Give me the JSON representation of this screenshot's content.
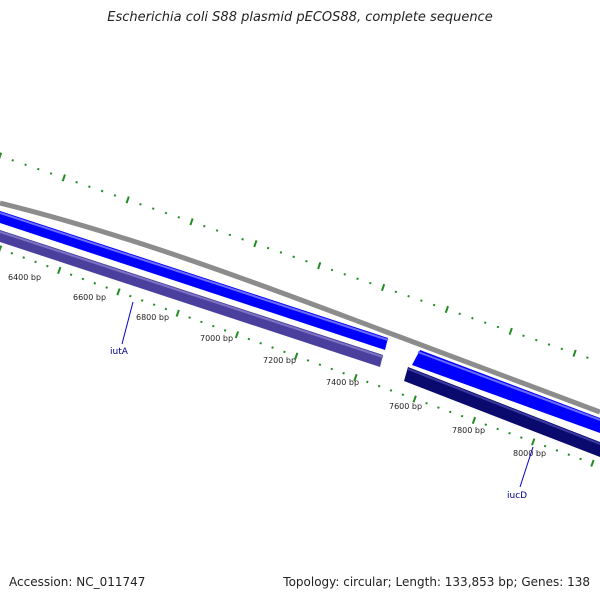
{
  "title": "Escherichia coli S88 plasmid pECOS88, complete sequence",
  "footer": {
    "accession": "Accession: NC_011747",
    "topology": "Topology: circular; Length: 133,853 bp; Genes: 138"
  },
  "map": {
    "bp_labels": [
      "6400 bp",
      "6600 bp",
      "6800 bp",
      "7000 bp",
      "7200 bp",
      "7400 bp",
      "7600 bp",
      "7800 bp",
      "8000 bp"
    ],
    "genes": [
      {
        "name": "iutA",
        "strand": "reverse",
        "color": "#4b3f9e"
      },
      {
        "name": "iucD",
        "strand": "reverse",
        "color": "#0a0a6e"
      }
    ],
    "forward_feature_color": "#0000ff",
    "backbone_color": "#8c8c8c",
    "tick_color": "#228b22"
  }
}
